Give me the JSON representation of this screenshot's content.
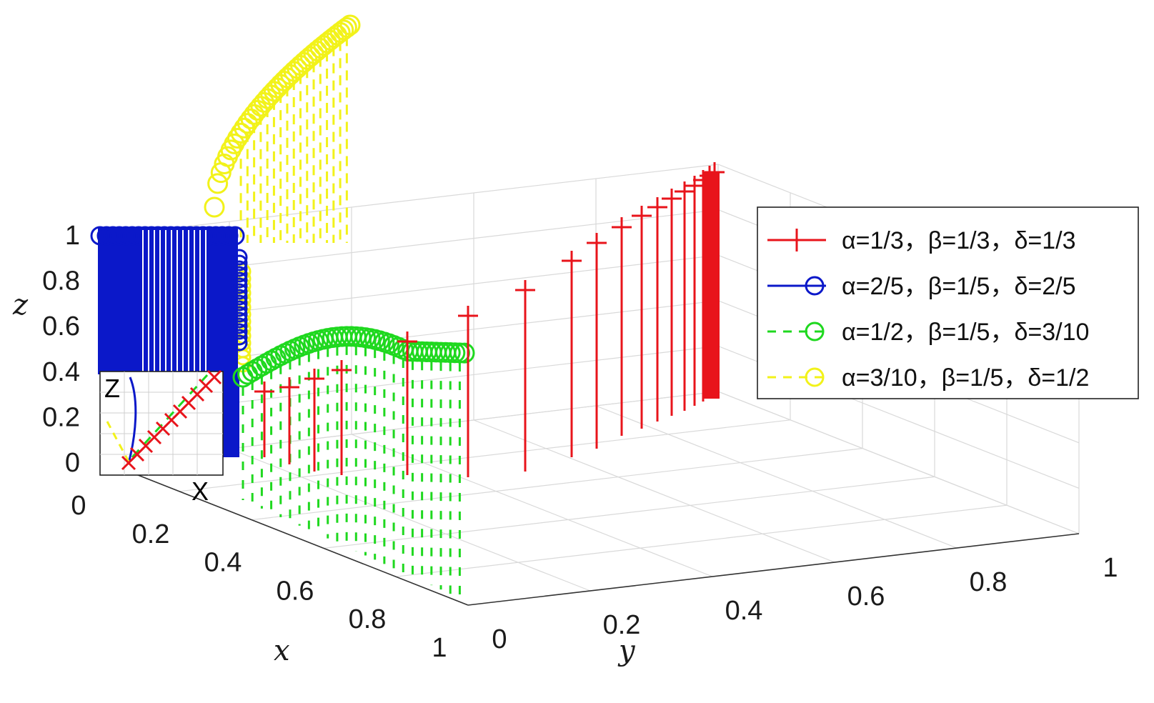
{
  "chart_data": {
    "type": "3d-line",
    "axes": {
      "x": {
        "label": "x",
        "range": [
          0,
          1
        ],
        "ticks": [
          "0",
          "0.2",
          "0.4",
          "0.6",
          "0.8",
          "1"
        ]
      },
      "y": {
        "label": "y",
        "range": [
          0,
          1
        ],
        "ticks": [
          "0",
          "0.2",
          "0.4",
          "0.6",
          "0.8",
          "1"
        ]
      },
      "z": {
        "label": "z",
        "range": [
          0,
          1
        ],
        "ticks": [
          "0",
          "0.2",
          "0.4",
          "0.6",
          "0.8",
          "1"
        ]
      }
    },
    "grid": true,
    "legend_position": "right",
    "series": [
      {
        "name": "α=1/3，β=1/3，δ=1/3",
        "color": "#e8141b",
        "line": "solid",
        "marker": "plus",
        "stems_x": [
          0.47,
          0.5,
          0.54,
          0.58,
          0.72,
          0.82,
          0.9,
          0.95,
          0.99,
          1.0
        ],
        "stems_y": [
          0.0,
          0.05,
          0.08,
          0.1,
          0.2,
          0.32,
          0.45,
          0.55,
          0.62,
          0.66
        ],
        "stems_z": [
          0.45,
          0.47,
          0.5,
          0.52,
          0.6,
          0.72,
          0.8,
          0.86,
          0.9,
          0.92
        ]
      },
      {
        "name": "α=2/5，β=1/5，δ=2/5",
        "color": "#0b18c9",
        "line": "solid",
        "marker": "circle"
      },
      {
        "name": "α=1/2，β=1/5，δ=3/10",
        "color": "#1fd81f",
        "line": "dashed",
        "marker": "circle"
      },
      {
        "name": "α=3/10，β=1/5，δ=1/2",
        "color": "#f2f21a",
        "line": "dashed",
        "marker": "circle"
      }
    ],
    "inset": {
      "labels": [
        "Z",
        "X"
      ]
    }
  }
}
